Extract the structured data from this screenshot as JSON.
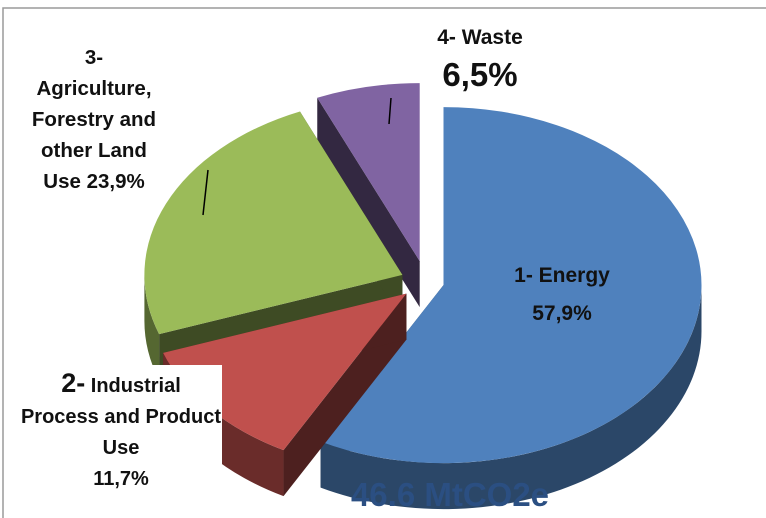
{
  "chart_data": {
    "type": "pie",
    "style": "3d-exploded",
    "total_label": "46.6 MtCO2e",
    "slices": [
      {
        "name": "1- Energy",
        "value": 57.9,
        "value_label": "57,9%",
        "color": "#4f81bd"
      },
      {
        "name": "2- Industrial Process and Product Use",
        "value": 11.7,
        "value_label": "11,7%",
        "color": "#c0504d"
      },
      {
        "name": "3- Agriculture, Forestry and other Land Use",
        "value": 23.9,
        "value_label": "23,9%",
        "color": "#9bbb59"
      },
      {
        "name": "4- Waste",
        "value": 6.5,
        "value_label": "6,5%",
        "color": "#8064a2"
      }
    ]
  },
  "labels": {
    "energy_name": "1- Energy",
    "energy_value": "57,9%",
    "industrial_num": "2-",
    "industrial_name": " Industrial Process and Product Use",
    "industrial_value": "11,7%",
    "agri_num": "3-",
    "agri_name": "Agriculture, Forestry and other Land",
    "agri_tail": "Use",
    "agri_value": "23,9%",
    "waste_name": "4- Waste",
    "waste_value": "6,5%",
    "total": "46.6 MtCO2e"
  }
}
